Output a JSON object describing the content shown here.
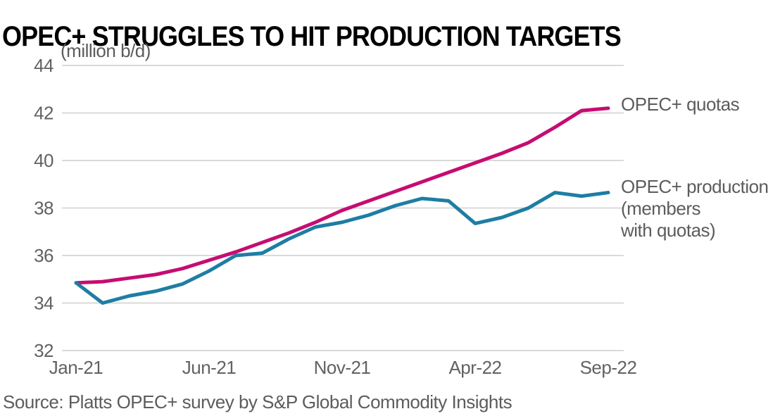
{
  "title": "OPEC+ STRUGGLES TO HIT PRODUCTION TARGETS",
  "unit_label": "(million b/d)",
  "source": "Source: Platts OPEC+ survey by S&P Global Commodity Insights",
  "legend": {
    "quotas": "OPEC+ quotas",
    "production": "OPEC+ production\n(members\nwith quotas)"
  },
  "colors": {
    "quotas": "#c50d72",
    "production": "#1e7da4",
    "grid": "#d9d9d9",
    "axis_text": "#616264",
    "text_gray": "#5b5c5e",
    "title_text": "#000000"
  },
  "chart_data": {
    "type": "line",
    "title": "OPEC+ STRUGGLES TO HIT PRODUCTION TARGETS",
    "ylabel": "(million b/d)",
    "ylim": [
      32,
      44
    ],
    "y_ticks": [
      32,
      34,
      36,
      38,
      40,
      42,
      44
    ],
    "grid": true,
    "legend_position": "right-of-line-ends",
    "months": [
      "Jan-21",
      "Feb-21",
      "Mar-21",
      "Apr-21",
      "May-21",
      "Jun-21",
      "Jul-21",
      "Aug-21",
      "Sep-21",
      "Oct-21",
      "Nov-21",
      "Dec-21",
      "Jan-22",
      "Feb-22",
      "Mar-22",
      "Apr-22",
      "May-22",
      "Jun-22",
      "Jul-22",
      "Aug-22",
      "Sep-22"
    ],
    "x_ticks": [
      "Jan-21",
      "Jun-21",
      "Nov-21",
      "Apr-22",
      "Sep-22"
    ],
    "x_tick_positions": [
      0,
      5,
      10,
      15,
      20
    ],
    "series": [
      {
        "name": "OPEC+ quotas",
        "color_key": "quotas",
        "values": [
          34.85,
          34.9,
          35.05,
          35.2,
          35.45,
          35.8,
          36.15,
          36.55,
          36.95,
          37.4,
          37.9,
          38.3,
          38.7,
          39.1,
          39.5,
          39.9,
          40.3,
          40.75,
          41.4,
          42.1,
          42.2
        ]
      },
      {
        "name": "OPEC+ production (members with quotas)",
        "color_key": "production",
        "values": [
          34.85,
          34.0,
          34.3,
          34.5,
          34.8,
          35.35,
          36.0,
          36.1,
          36.7,
          37.2,
          37.4,
          37.7,
          38.1,
          38.4,
          38.3,
          37.35,
          37.6,
          38.0,
          38.65,
          38.5,
          38.65
        ]
      }
    ]
  }
}
